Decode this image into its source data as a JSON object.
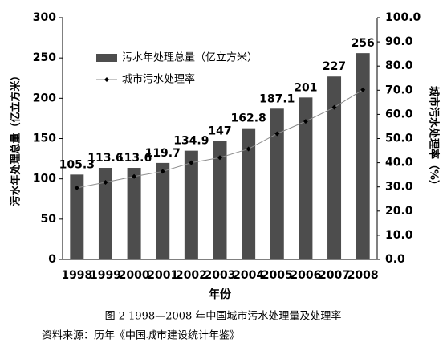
{
  "chart_data": {
    "type": "bar",
    "x_label": "年份",
    "y_label": "污水年处理总量（亿立方米）",
    "y2_label": "城市污水处理率（%）",
    "legend": "upper left",
    "categories": [
      "1998",
      "1999",
      "2000",
      "2001",
      "2002",
      "2003",
      "2004",
      "2005",
      "2006",
      "2007",
      "2008"
    ],
    "series": [
      {
        "name": "污水年处理总量（亿立方米）",
        "type": "bar",
        "color": "#4d4d4d",
        "values": [
          105.3,
          113.6,
          113.6,
          119.7,
          134.9,
          147,
          162.8,
          187.1,
          201,
          227,
          256
        ]
      },
      {
        "name": "城市污水处理率",
        "type": "line",
        "axis": "y2",
        "color": "#8c8c8c",
        "marker_color": "#000000",
        "values": [
          29.6,
          31.9,
          34.3,
          36.4,
          40.0,
          42.1,
          45.7,
          52.0,
          57.1,
          62.9,
          70.2
        ]
      }
    ],
    "ylim": [
      0,
      300
    ],
    "yticks": [
      0,
      50,
      100,
      150,
      200,
      250,
      300
    ],
    "y2lim": [
      0,
      100
    ],
    "y2ticks": [
      {
        "value": 0,
        "label": "0.0"
      },
      {
        "value": 10,
        "label": "10.0"
      },
      {
        "value": 20,
        "label": "20.0"
      },
      {
        "value": 30,
        "label": "30.0"
      },
      {
        "value": 40,
        "label": "40.0"
      },
      {
        "value": 50,
        "label": "50.0"
      },
      {
        "value": 60,
        "label": "60.0"
      },
      {
        "value": 70,
        "label": "70.0"
      },
      {
        "value": 80,
        "label": "80.0"
      },
      {
        "value": 90,
        "label": "90.0"
      },
      {
        "value": 100,
        "label": "100.0"
      }
    ]
  },
  "caption": [
    "图 2  1998—2008 年中国城市污水处理量及处理率",
    "资料来源：历年《中国城市建设统计年鉴》"
  ]
}
